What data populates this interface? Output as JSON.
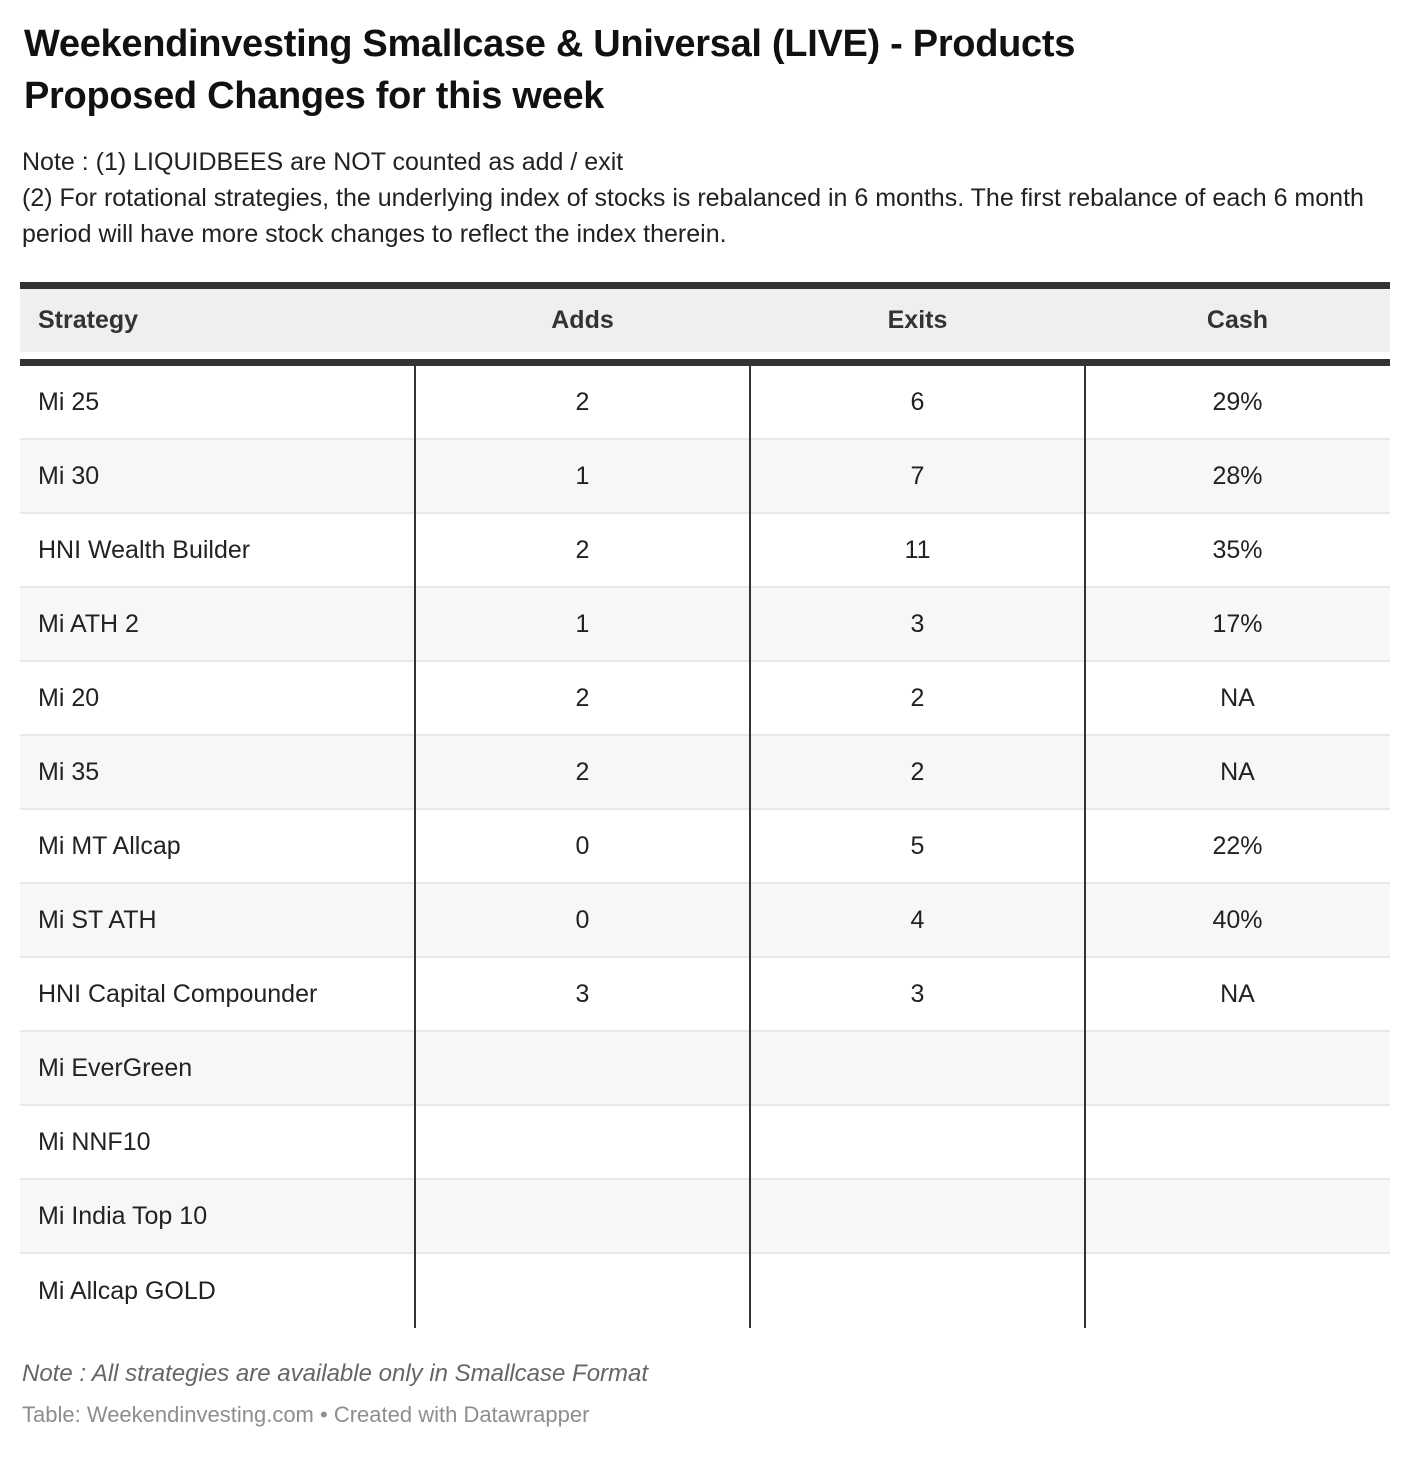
{
  "chart_data": {
    "type": "table",
    "title": "Weekendinvesting Smallcase & Universal (LIVE) - Products Proposed Changes for this week",
    "title_lines": [
      "Weekendinvesting Smallcase & Universal (LIVE) - Products",
      "Proposed Changes for this week"
    ],
    "header_notes": [
      "Note : (1) LIQUIDBEES are NOT counted as add / exit",
      "(2) For rotational strategies, the underlying index of stocks is rebalanced in 6 months. The first rebalance of each 6 month period will have more stock changes to reflect the index therein."
    ],
    "columns": [
      "Strategy",
      "Adds",
      "Exits",
      "Cash"
    ],
    "rows": [
      {
        "strategy": "Mi 25",
        "adds": "2",
        "exits": "6",
        "cash": "29%"
      },
      {
        "strategy": "Mi 30",
        "adds": "1",
        "exits": "7",
        "cash": "28%"
      },
      {
        "strategy": "HNI Wealth Builder",
        "adds": "2",
        "exits": "11",
        "cash": "35%"
      },
      {
        "strategy": "Mi ATH 2",
        "adds": "1",
        "exits": "3",
        "cash": "17%"
      },
      {
        "strategy": "Mi 20",
        "adds": "2",
        "exits": "2",
        "cash": "NA"
      },
      {
        "strategy": "Mi 35",
        "adds": "2",
        "exits": "2",
        "cash": "NA"
      },
      {
        "strategy": "Mi MT Allcap",
        "adds": "0",
        "exits": "5",
        "cash": "22%"
      },
      {
        "strategy": "Mi ST ATH",
        "adds": "0",
        "exits": "4",
        "cash": "40%"
      },
      {
        "strategy": "HNI Capital Compounder",
        "adds": "3",
        "exits": "3",
        "cash": "NA"
      },
      {
        "strategy": "Mi EverGreen",
        "adds": "",
        "exits": "",
        "cash": ""
      },
      {
        "strategy": "Mi NNF10",
        "adds": "",
        "exits": "",
        "cash": ""
      },
      {
        "strategy": "Mi India Top 10",
        "adds": "",
        "exits": "",
        "cash": ""
      },
      {
        "strategy": "Mi Allcap GOLD",
        "adds": "",
        "exits": "",
        "cash": ""
      }
    ],
    "footnote": "Note : All strategies are available only in Smallcase Format",
    "attribution": {
      "prefix": "Table: ",
      "source": "Weekendinvesting.com",
      "separator": " • ",
      "created_prefix": "Created with ",
      "tool": "Datawrapper"
    },
    "layout_hints": {
      "grid": "horizontal stripes with dark column dividers",
      "legend_position": "none"
    }
  },
  "colors": {
    "border_dark": "#333333",
    "header_bg": "#efefef",
    "stripe_bg": "#f7f7f7",
    "row_separator": "#e8e8e8",
    "title_text": "#111111",
    "body_text": "#222222",
    "footnote_text": "#666666",
    "attribution_text": "#8e8e8e"
  }
}
